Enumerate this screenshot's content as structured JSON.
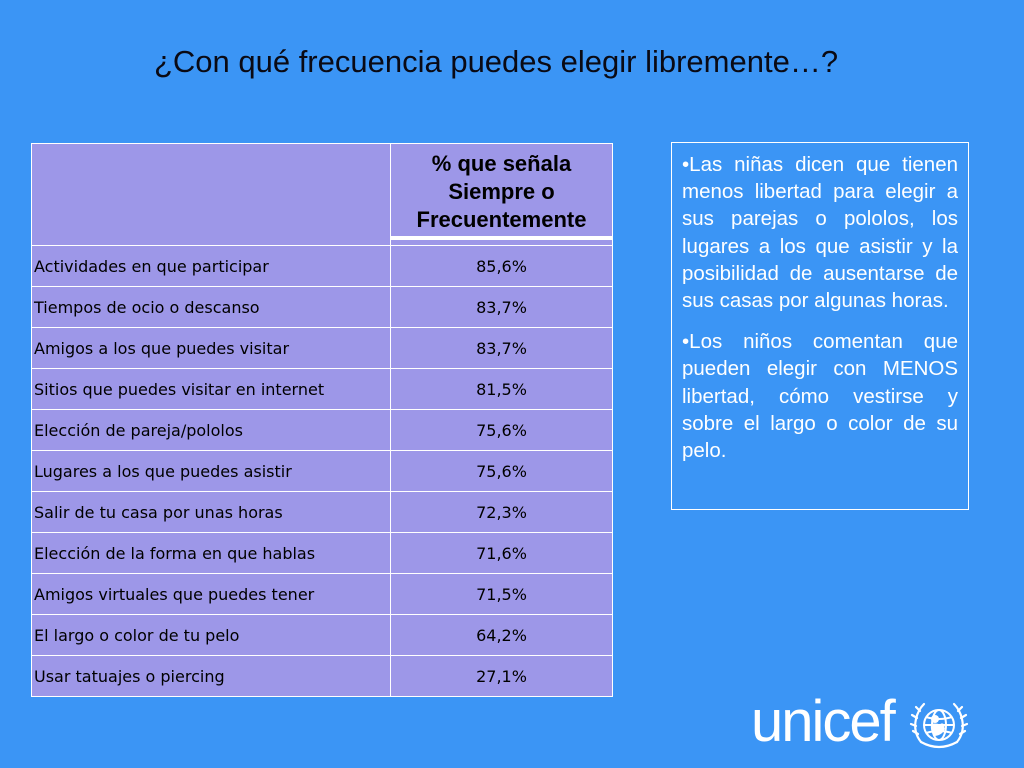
{
  "title": "¿Con qué frecuencia puedes elegir libremente…?",
  "table": {
    "corner": "",
    "header": "% que señala Siempre o Frecuentemente",
    "rows": [
      {
        "label": "Actividades en que participar",
        "value": "85,6%"
      },
      {
        "label": "Tiempos de ocio o descanso",
        "value": "83,7%"
      },
      {
        "label": "Amigos a los que puedes visitar",
        "value": "83,7%"
      },
      {
        "label": "Sitios que puedes visitar en internet",
        "value": "81,5%"
      },
      {
        "label": "Elección de pareja/pololos",
        "value": "75,6%"
      },
      {
        "label": "Lugares a los que puedes asistir",
        "value": "75,6%"
      },
      {
        "label": "Salir de tu casa por unas horas",
        "value": "72,3%"
      },
      {
        "label": "Elección de la forma en que hablas",
        "value": "71,6%"
      },
      {
        "label": "Amigos virtuales que puedes tener",
        "value": "71,5%"
      },
      {
        "label": "El largo o color de tu pelo",
        "value": "64,2%"
      },
      {
        "label": "Usar tatuajes o piercing",
        "value": "27,1%"
      }
    ]
  },
  "notes": [
    "•Las niñas dicen que tienen menos libertad para elegir a sus parejas o pololos, los lugares a los que asistir y la posibilidad de ausentarse de sus casas por algunas horas.",
    "•Los niños comentan que pueden elegir con MENOS libertad, cómo vestirse y sobre el largo o color de su pelo."
  ],
  "logo": {
    "text": "unicef",
    "emblem_icon": "unicef-emblem-icon"
  },
  "colors": {
    "background": "#3b95f5",
    "table_fill": "#9d97e8",
    "text_white": "#ffffff"
  }
}
